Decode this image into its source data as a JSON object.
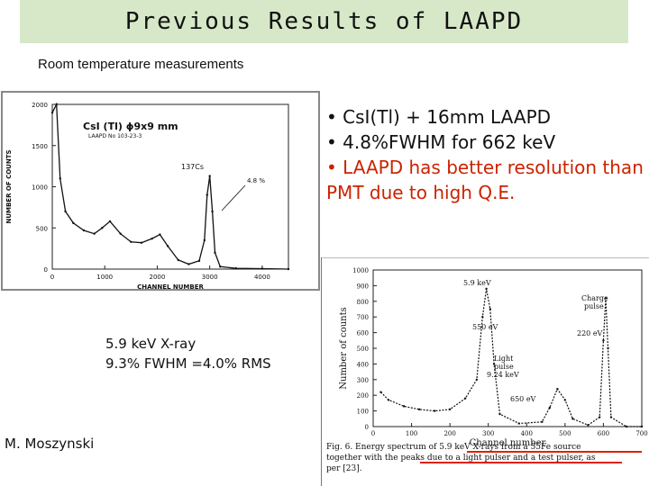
{
  "slide": {
    "title": "Previous Results of LAAPD",
    "subtitle": "Room temperature measurements"
  },
  "bullets": [
    {
      "text": "• CsI(Tl) + 16mm LAAPD",
      "color": "#111111"
    },
    {
      "text": "• 4.8%FWHM for 662 keV",
      "color": "#111111"
    },
    {
      "text": "• LAAPD has better resolution than PMT due to high Q.E.",
      "color": "#cc2200"
    }
  ],
  "left_caption": {
    "line1": "5.9 keV X-ray",
    "line2": "9.3% FWHM =4.0% RMS"
  },
  "author": "M. Moszynski",
  "chart_data": [
    {
      "type": "line",
      "title": "CsI (Tl) ϕ9x9 mm",
      "subtitle": "LAAPD No 103-23-3",
      "xlabel": "CHANNEL NUMBER",
      "ylabel": "NUMBER OF COUNTS",
      "xlim": [
        0,
        4500
      ],
      "ylim": [
        0,
        2000
      ],
      "xticks": [
        "0",
        "1000",
        "2000",
        "3000",
        "4000"
      ],
      "yticks": [
        "0",
        "500",
        "1000",
        "1500",
        "2000"
      ],
      "annotations": [
        "137Cs",
        "4.8 %"
      ],
      "x": [
        0,
        80,
        150,
        250,
        400,
        600,
        800,
        950,
        1100,
        1300,
        1500,
        1700,
        1900,
        2050,
        2200,
        2400,
        2600,
        2800,
        2900,
        2950,
        3000,
        3050,
        3100,
        3200,
        3500,
        4000,
        4500
      ],
      "y": [
        1900,
        2000,
        1100,
        700,
        560,
        470,
        430,
        500,
        580,
        430,
        330,
        320,
        370,
        420,
        280,
        110,
        60,
        100,
        350,
        900,
        1130,
        700,
        200,
        30,
        10,
        5,
        0
      ]
    },
    {
      "type": "line",
      "xlabel": "Channel number",
      "ylabel": "Number of counts",
      "xlim": [
        0,
        700
      ],
      "ylim": [
        0,
        1000
      ],
      "xticks": [
        "0",
        "100",
        "200",
        "300",
        "400",
        "500",
        "600",
        "700"
      ],
      "yticks": [
        "0",
        "100",
        "200",
        "300",
        "400",
        "500",
        "600",
        "700",
        "800",
        "900",
        "1000"
      ],
      "annotations": [
        "5.9 keV",
        "550 eV",
        "Light pulse 9.24 keV",
        "650 eV",
        "Charge pulse",
        "220 eV"
      ],
      "x": [
        20,
        40,
        80,
        120,
        160,
        200,
        240,
        270,
        285,
        295,
        305,
        315,
        330,
        380,
        440,
        460,
        480,
        500,
        520,
        560,
        590,
        600,
        606,
        612,
        620,
        660,
        700
      ],
      "y": [
        220,
        170,
        130,
        110,
        100,
        110,
        180,
        300,
        700,
        880,
        750,
        400,
        80,
        20,
        30,
        120,
        240,
        170,
        50,
        10,
        60,
        550,
        820,
        500,
        60,
        0,
        0
      ]
    }
  ],
  "figure_caption": {
    "text": "Fig. 6.  Energy spectrum of 5.9 keV X-rays from a 55Fe source together with the peaks due to a light pulser and a test pulser, as per [23]."
  }
}
